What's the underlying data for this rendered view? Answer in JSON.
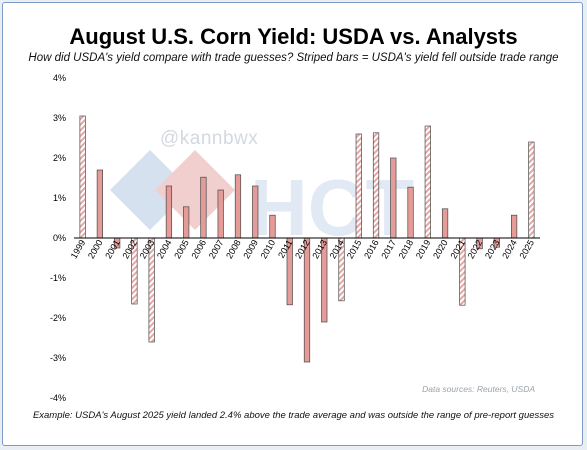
{
  "title": "August U.S. Corn Yield: USDA vs. Analysts",
  "subtitle": "How did USDA's yield compare with trade guesses? Striped bars = USDA's yield fell outside trade range",
  "footnote": "Example: USDA's August 2025 yield landed 2.4% above the trade average and was outside the range of pre-report guesses",
  "source": "Data sources: Reuters, USDA",
  "watermark": {
    "handle": "@kannbwx",
    "logo_text": "HCT"
  },
  "colors": {
    "solid_fill": "#e59b98",
    "solid_stroke": "#4a4a4a",
    "stripe": "#e3a7a4",
    "zero_line": "#000000"
  },
  "chart_data": {
    "type": "bar",
    "title": "August U.S. Corn Yield: USDA vs. Analysts",
    "xlabel": "",
    "ylabel": "",
    "ylim": [
      -4,
      4
    ],
    "y_ticks": [
      "4%",
      "3%",
      "2%",
      "1%",
      "0%",
      "-1%",
      "-2%",
      "-3%",
      "-4%"
    ],
    "grid": false,
    "categories": [
      "1999",
      "2000",
      "2001",
      "2002",
      "2003",
      "2004",
      "2005",
      "2006",
      "2007",
      "2008",
      "2009",
      "2010",
      "2011",
      "2012",
      "2013",
      "2014",
      "2015",
      "2016",
      "2017",
      "2018",
      "2019",
      "2020",
      "2021",
      "2022",
      "2023",
      "2024",
      "2025"
    ],
    "values": [
      3.05,
      1.7,
      -0.25,
      -1.65,
      -2.6,
      1.3,
      0.78,
      1.52,
      1.2,
      1.58,
      1.3,
      0.57,
      -1.67,
      -3.1,
      -2.1,
      -1.57,
      2.6,
      2.63,
      2.0,
      1.27,
      2.8,
      0.73,
      -1.68,
      -0.27,
      -0.23,
      0.57,
      2.4
    ],
    "outside_range": [
      true,
      false,
      false,
      true,
      true,
      false,
      false,
      false,
      false,
      false,
      false,
      false,
      false,
      false,
      false,
      true,
      true,
      true,
      false,
      false,
      true,
      false,
      true,
      false,
      false,
      false,
      true
    ]
  }
}
